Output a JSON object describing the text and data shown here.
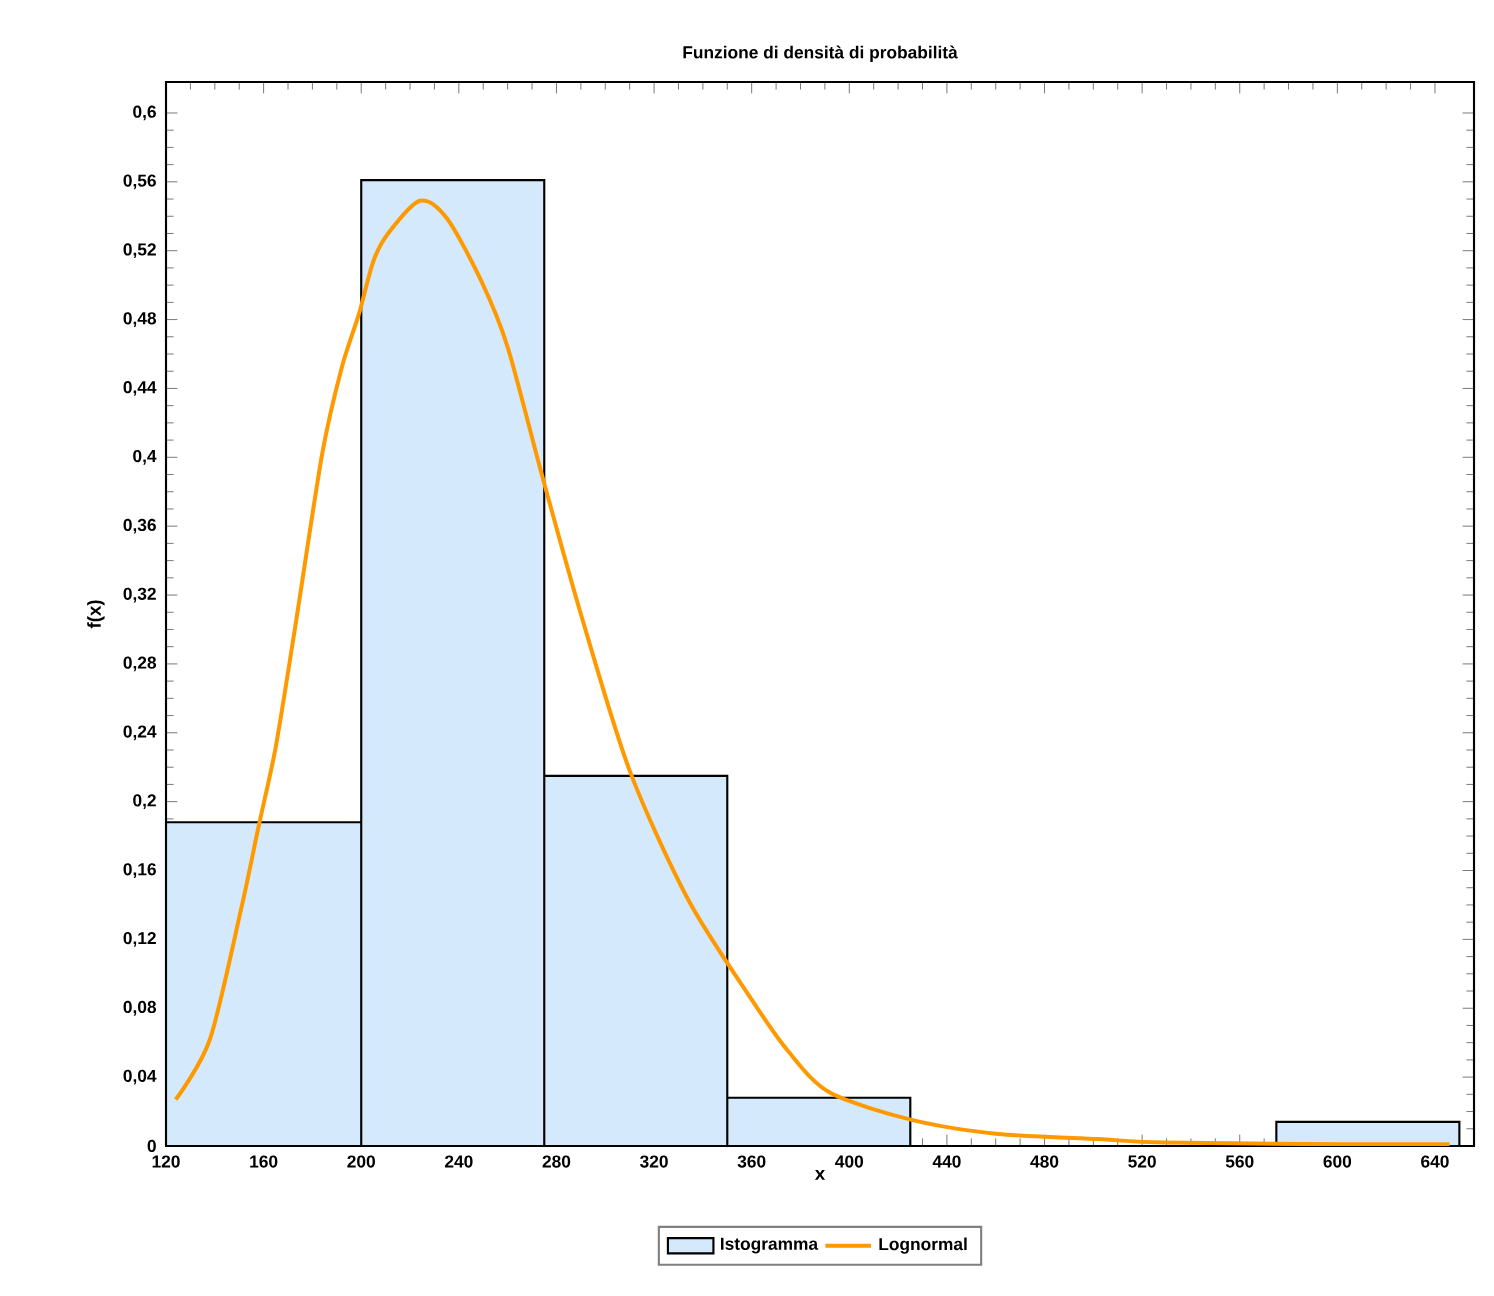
{
  "chart_data": {
    "type": "histogram",
    "title": "Funzione di densità di probabilità",
    "xlabel": "x",
    "ylabel": "f(x)",
    "xlim": [
      120,
      656
    ],
    "ylim": [
      0,
      0.618
    ],
    "xticks": [
      120,
      160,
      200,
      240,
      280,
      320,
      360,
      400,
      440,
      480,
      520,
      560,
      600,
      640
    ],
    "yticks": [
      0,
      {
        "value": 0.04,
        "label": "0,04"
      },
      {
        "value": 0.08,
        "label": "0,08"
      },
      {
        "value": 0.12,
        "label": "0,12"
      },
      {
        "value": 0.16,
        "label": "0,16"
      },
      {
        "value": 0.2,
        "label": "0,2"
      },
      {
        "value": 0.24,
        "label": "0,24"
      },
      {
        "value": 0.28,
        "label": "0,28"
      },
      {
        "value": 0.32,
        "label": "0,32"
      },
      {
        "value": 0.36,
        "label": "0,36"
      },
      {
        "value": 0.4,
        "label": "0,4"
      },
      {
        "value": 0.44,
        "label": "0,44"
      },
      {
        "value": 0.48,
        "label": "0,48"
      },
      {
        "value": 0.52,
        "label": "0,52"
      },
      {
        "value": 0.56,
        "label": "0,56"
      },
      {
        "value": 0.6,
        "label": "0,6"
      }
    ],
    "grid": false,
    "legend": "bottom",
    "marker": "none",
    "series": [
      {
        "name": "Istogramma",
        "color": "#d4e9fb",
        "bins": [
          120,
          200,
          275,
          350,
          425,
          575,
          650
        ],
        "values": [
          0.188,
          0.561,
          0.215,
          0.028,
          0,
          0.014
        ]
      },
      {
        "name": "Lognormal",
        "type": "line",
        "color": "#ff9900",
        "line_style": "solid",
        "x": [
          124,
          138,
          151,
          158,
          165,
          173,
          184,
          192,
          199,
          205,
          211,
          224,
          235,
          249,
          260,
          274,
          290,
          310,
          334,
          360,
          375,
          392,
          426,
          461,
          502,
          529,
          600,
          646
        ],
        "values": [
          0.027,
          0.062,
          0.139,
          0.186,
          0.232,
          0.302,
          0.402,
          0.452,
          0.483,
          0.514,
          0.53,
          0.549,
          0.539,
          0.503,
          0.464,
          0.39,
          0.309,
          0.218,
          0.143,
          0.085,
          0.055,
          0.031,
          0.015,
          0.007,
          0.004,
          0.002,
          0.001,
          0.001
        ]
      }
    ]
  }
}
